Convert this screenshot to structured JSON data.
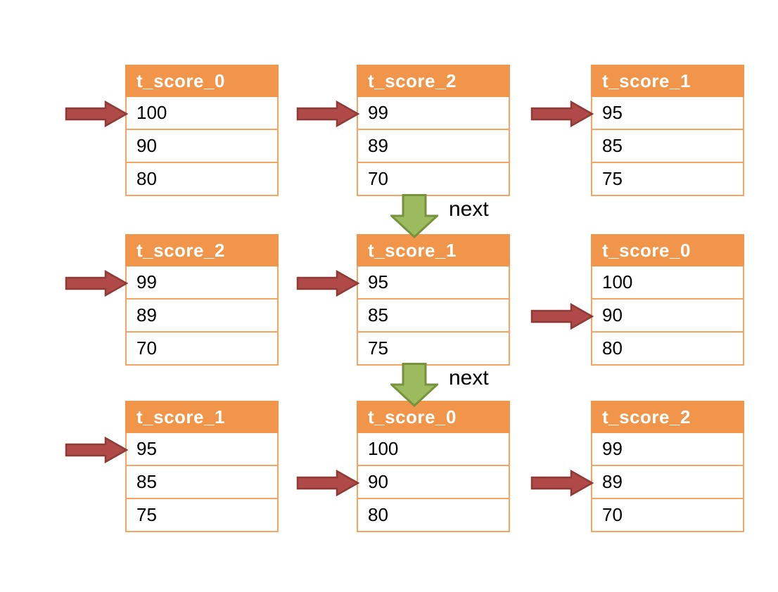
{
  "diagram": {
    "tables": [
      {
        "title": "t_score_0",
        "rows": [
          "100",
          "90",
          "80"
        ],
        "pointer_row": 0,
        "col": 0,
        "row": 0
      },
      {
        "title": "t_score_2",
        "rows": [
          "99",
          "89",
          "70"
        ],
        "pointer_row": 0,
        "col": 1,
        "row": 0
      },
      {
        "title": "t_score_1",
        "rows": [
          "95",
          "85",
          "75"
        ],
        "pointer_row": 0,
        "col": 2,
        "row": 0
      },
      {
        "title": "t_score_2",
        "rows": [
          "99",
          "89",
          "70"
        ],
        "pointer_row": 0,
        "col": 0,
        "row": 1
      },
      {
        "title": "t_score_1",
        "rows": [
          "95",
          "85",
          "75"
        ],
        "pointer_row": 0,
        "col": 1,
        "row": 1
      },
      {
        "title": "t_score_0",
        "rows": [
          "100",
          "90",
          "80"
        ],
        "pointer_row": 1,
        "col": 2,
        "row": 1
      },
      {
        "title": "t_score_1",
        "rows": [
          "95",
          "85",
          "75"
        ],
        "pointer_row": 0,
        "col": 0,
        "row": 2
      },
      {
        "title": "t_score_0",
        "rows": [
          "100",
          "90",
          "80"
        ],
        "pointer_row": 1,
        "col": 1,
        "row": 2
      },
      {
        "title": "t_score_2",
        "rows": [
          "99",
          "89",
          "70"
        ],
        "pointer_row": 1,
        "col": 2,
        "row": 2
      }
    ],
    "flow_arrows": [
      {
        "label": "next",
        "from": "top-middle-table",
        "to": "middle-middle-table"
      },
      {
        "label": "next",
        "from": "middle-middle-table",
        "to": "bottom-middle-table"
      }
    ],
    "colors": {
      "header_bg": "#F0954A",
      "header_text": "#FFFFFF",
      "table_border": "#F5A462",
      "cell_text": "#000000",
      "pointer_fill": "#B04A48",
      "pointer_stroke": "#8E3A36",
      "flow_fill": "#9CBB5E",
      "flow_stroke": "#76923C",
      "label_text": "#000000"
    }
  }
}
